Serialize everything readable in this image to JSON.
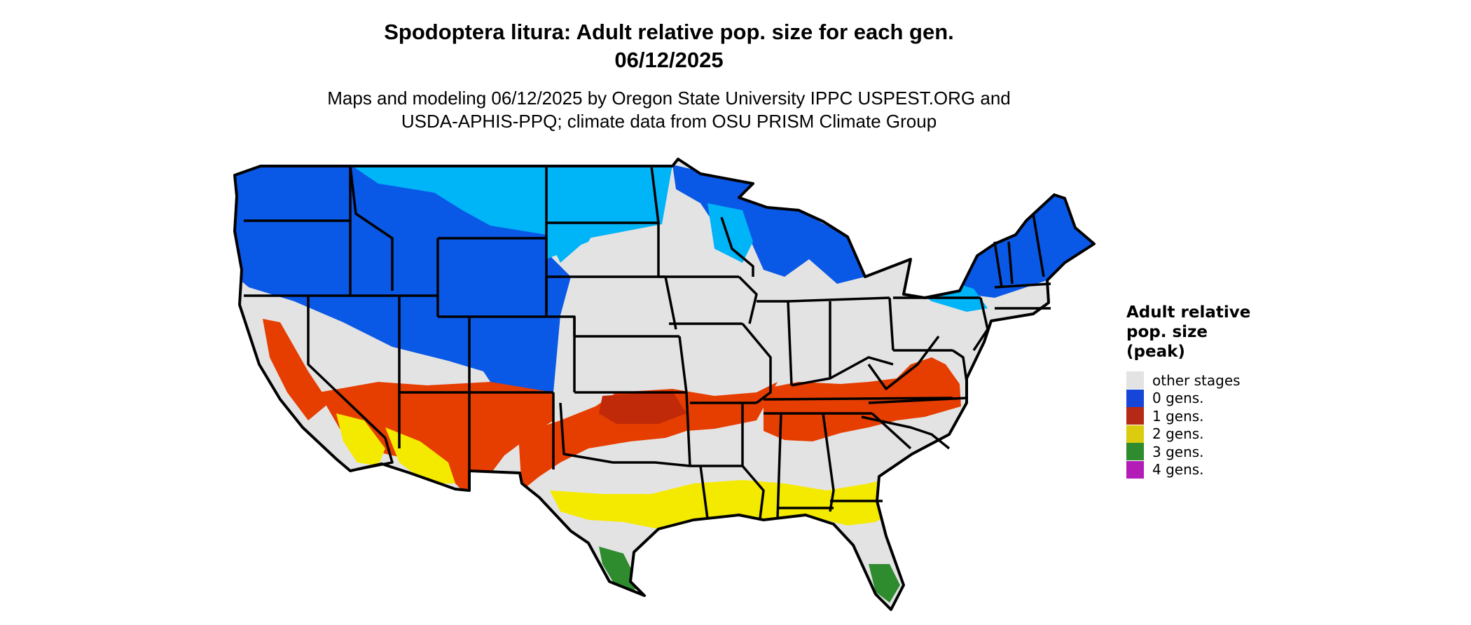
{
  "title": {
    "line1": "Spodoptera litura: Adult relative pop. size for each gen.",
    "line2": "06/12/2025"
  },
  "subtitle": {
    "line1": "Maps and modeling 06/12/2025 by Oregon State University IPPC USPEST.ORG and",
    "line2": "USDA-APHIS-PPQ; climate data from OSU PRISM Climate Group"
  },
  "legend": {
    "title_lines": [
      "Adult relative",
      "pop. size",
      "(peak)"
    ],
    "items": [
      {
        "label": "other stages",
        "color": "#e3e3e3"
      },
      {
        "label": "0 gens.",
        "color": "#1646d8"
      },
      {
        "label": "1 gens.",
        "color": "#b52a14"
      },
      {
        "label": "2 gens.",
        "color": "#dccc10"
      },
      {
        "label": "3 gens.",
        "color": "#2e8b2e"
      },
      {
        "label": "4 gens.",
        "color": "#b41cb8"
      }
    ]
  },
  "map_colors": {
    "land": "#e3e3e3",
    "border": "#000000",
    "blue_dark": "#0a58e6",
    "blue_light": "#00b4f8",
    "red": "#e63d00",
    "red_dark": "#c02a08",
    "yellow": "#f4ea00",
    "green": "#2e8b2e"
  }
}
